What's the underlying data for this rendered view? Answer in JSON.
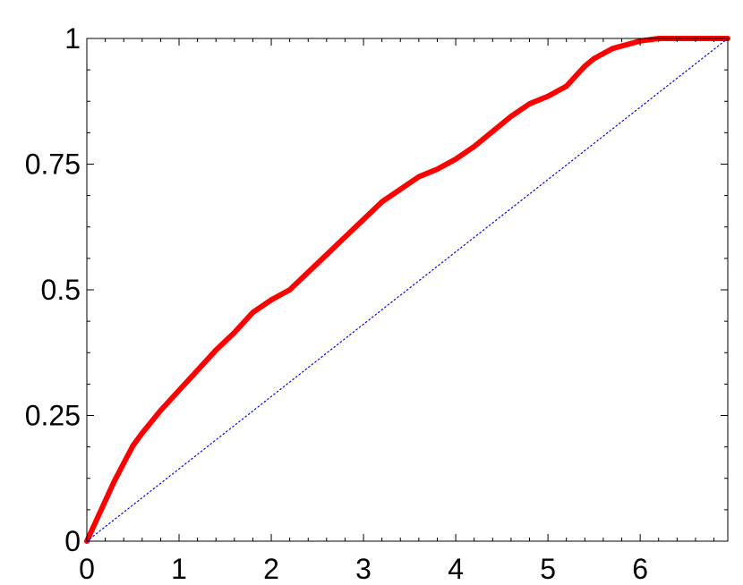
{
  "chart_data": {
    "type": "line",
    "title": "",
    "xlabel": "",
    "ylabel": "",
    "xlim": [
      0,
      6.95
    ],
    "ylim": [
      0,
      1
    ],
    "xticks": [
      0,
      1,
      2,
      3,
      4,
      5,
      6
    ],
    "xtick_labels": [
      "0",
      "1",
      "2",
      "3",
      "4",
      "5",
      "6"
    ],
    "yticks": [
      0,
      0.25,
      0.5,
      0.75,
      1
    ],
    "ytick_labels": [
      "0",
      "0.25",
      "0.5",
      "0.75",
      "1"
    ],
    "minor_tick_step": 0.0625,
    "grid": false,
    "series": [
      {
        "color": "#ff0000",
        "style": "solid-thick",
        "x": [
          0,
          0.1,
          0.2,
          0.3,
          0.4,
          0.5,
          0.6,
          0.8,
          1.0,
          1.2,
          1.4,
          1.6,
          1.8,
          2.0,
          2.2,
          2.4,
          2.6,
          2.8,
          3.0,
          3.2,
          3.4,
          3.6,
          3.8,
          4.0,
          4.2,
          4.4,
          4.6,
          4.8,
          5.0,
          5.2,
          5.3,
          5.4,
          5.5,
          5.6,
          5.7,
          5.8,
          5.9,
          6.0,
          6.2,
          6.5,
          6.95
        ],
        "y": [
          0,
          0.04,
          0.08,
          0.12,
          0.155,
          0.19,
          0.215,
          0.26,
          0.3,
          0.34,
          0.38,
          0.415,
          0.455,
          0.48,
          0.5,
          0.535,
          0.57,
          0.605,
          0.64,
          0.675,
          0.7,
          0.725,
          0.74,
          0.76,
          0.785,
          0.815,
          0.845,
          0.87,
          0.885,
          0.905,
          0.925,
          0.945,
          0.96,
          0.97,
          0.98,
          0.985,
          0.99,
          0.995,
          1.0,
          1.0,
          1.0
        ]
      },
      {
        "color": "#0000ff",
        "style": "dotted",
        "x": [
          0,
          6.95
        ],
        "y": [
          0,
          1
        ]
      }
    ]
  }
}
